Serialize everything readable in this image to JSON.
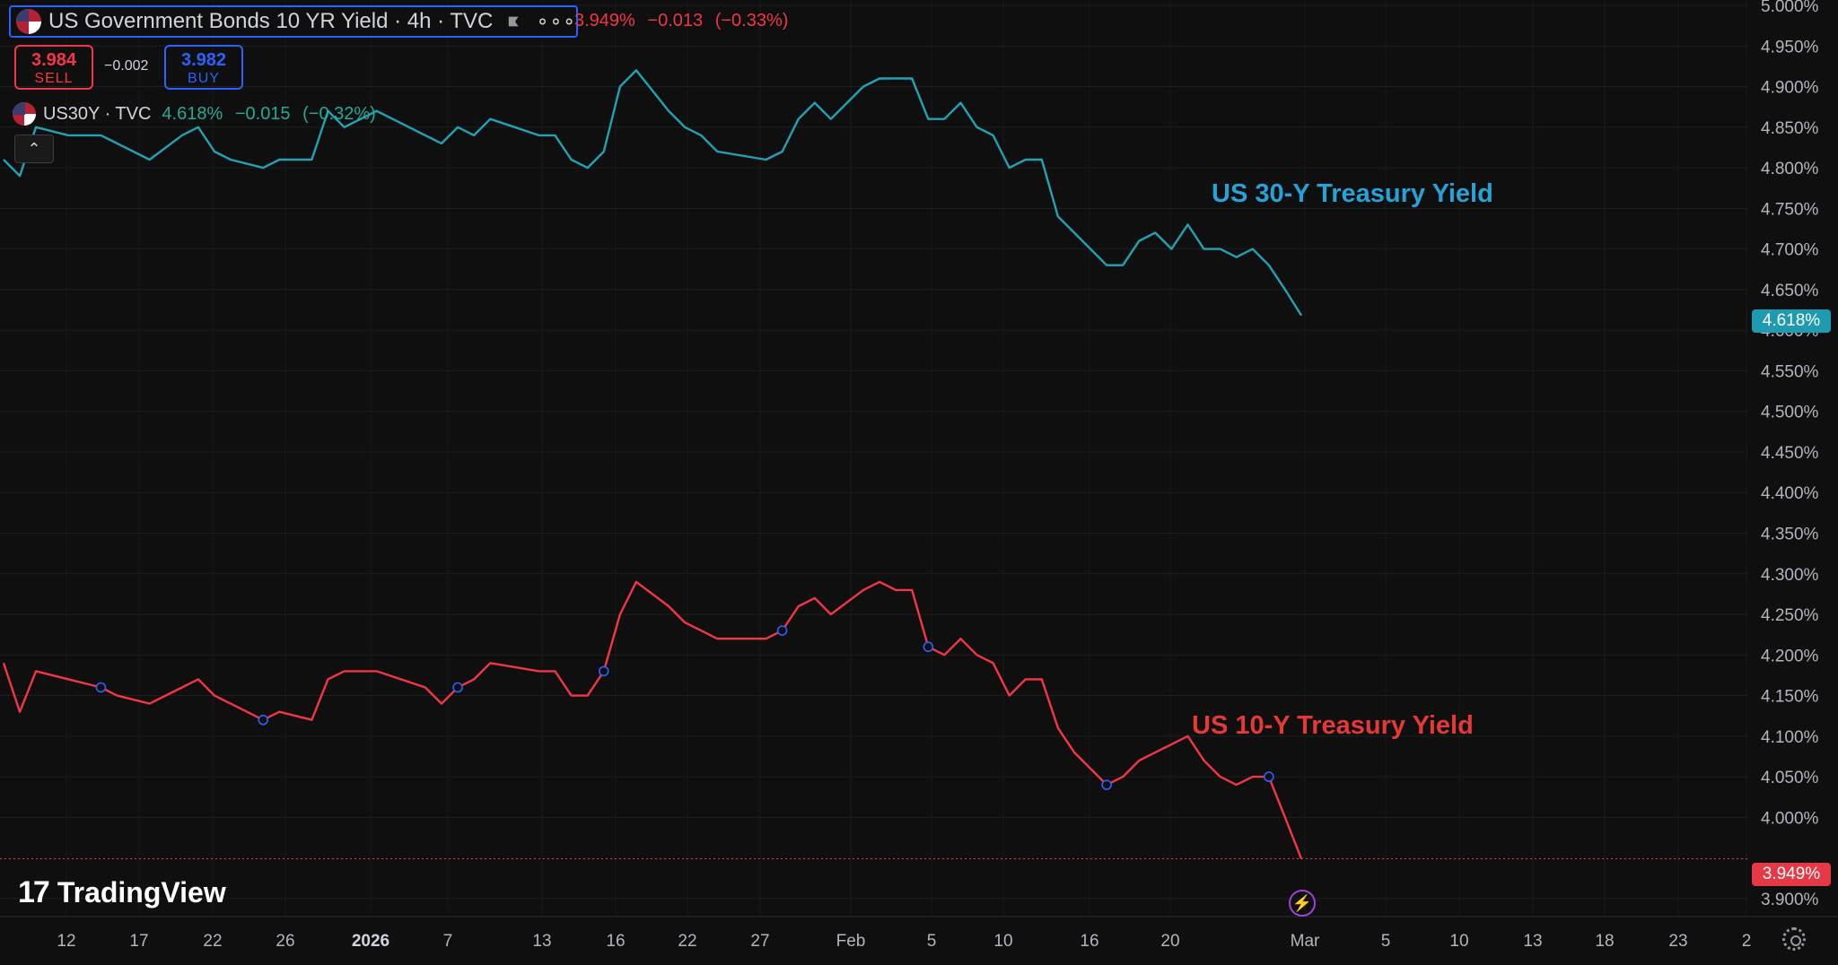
{
  "main_legend": {
    "title": "US Government Bonds 10 YR Yield · 4h · TVC",
    "more_icon": "more-dots-icon",
    "last": "3.949%",
    "change": "−0.013",
    "change_pct": "(−0.33%)"
  },
  "trade": {
    "sell_price": "3.984",
    "sell_label": "SELL",
    "spread": "−0.002",
    "buy_price": "3.982",
    "buy_label": "BUY"
  },
  "overlay_legend": {
    "symbol": "US30Y · TVC",
    "last": "4.618%",
    "change": "−0.015",
    "change_pct": "(−0.32%)"
  },
  "annotations": {
    "us30": "US 30-Y Treasury Yield",
    "us10": "US 10-Y Treasury Yield"
  },
  "branding": {
    "logo_mark": "17",
    "logo_text": "TradingView"
  },
  "badges": {
    "us30": "4.618%",
    "us10": "3.949%"
  },
  "colors": {
    "us30": "#22a2b3",
    "us10": "#f23645",
    "accent": "#2962ff",
    "event": "#a43fdb"
  },
  "chart_data": {
    "type": "line",
    "y_unit": "%",
    "ylim": [
      3.88,
      5.0
    ],
    "y_ticks": [
      "5.000%",
      "4.950%",
      "4.900%",
      "4.850%",
      "4.800%",
      "4.750%",
      "4.700%",
      "4.650%",
      "4.600%",
      "4.550%",
      "4.500%",
      "4.450%",
      "4.400%",
      "4.350%",
      "4.300%",
      "4.250%",
      "4.200%",
      "4.150%",
      "4.100%",
      "4.050%",
      "4.000%",
      "3.900%"
    ],
    "x_ticks": [
      "12",
      "17",
      "22",
      "26",
      "2026",
      "7",
      "13",
      "16",
      "22",
      "27",
      "Feb",
      "5",
      "10",
      "16",
      "20",
      "Mar",
      "5",
      "10",
      "13",
      "18",
      "23",
      "2"
    ],
    "grid": true,
    "series": [
      {
        "name": "US30Y",
        "color": "#22a2b3",
        "points": [
          [
            "Dec 10",
            4.81
          ],
          [
            "Dec 11",
            4.79
          ],
          [
            "Dec 12",
            4.85
          ],
          [
            "Dec 14",
            4.84
          ],
          [
            "Dec 16",
            4.84
          ],
          [
            "Dec 17",
            4.83
          ],
          [
            "Dec 19",
            4.81
          ],
          [
            "Dec 21",
            4.84
          ],
          [
            "Dec 22",
            4.85
          ],
          [
            "Dec 23",
            4.82
          ],
          [
            "Dec 24",
            4.81
          ],
          [
            "Dec 26",
            4.8
          ],
          [
            "Dec 27",
            4.81
          ],
          [
            "Dec 29",
            4.81
          ],
          [
            "Dec 30",
            4.87
          ],
          [
            "Dec 31",
            4.85
          ],
          [
            "Jan 2",
            4.87
          ],
          [
            "Jan 5",
            4.84
          ],
          [
            "Jan 6",
            4.83
          ],
          [
            "Jan 7",
            4.85
          ],
          [
            "Jan 8",
            4.84
          ],
          [
            "Jan 9",
            4.86
          ],
          [
            "Jan 12",
            4.84
          ],
          [
            "Jan 13",
            4.84
          ],
          [
            "Jan 14",
            4.81
          ],
          [
            "Jan 15",
            4.8
          ],
          [
            "Jan 16",
            4.82
          ],
          [
            "Jan 17",
            4.9
          ],
          [
            "Jan 18",
            4.92
          ],
          [
            "Jan 20",
            4.87
          ],
          [
            "Jan 21",
            4.85
          ],
          [
            "Jan 22",
            4.84
          ],
          [
            "Jan 23",
            4.82
          ],
          [
            "Jan 26",
            4.81
          ],
          [
            "Jan 27",
            4.82
          ],
          [
            "Jan 28",
            4.86
          ],
          [
            "Jan 29",
            4.88
          ],
          [
            "Jan 30",
            4.86
          ],
          [
            "Feb 1",
            4.9
          ],
          [
            "Feb 2",
            4.91
          ],
          [
            "Feb 3",
            4.91
          ],
          [
            "Feb 4",
            4.91
          ],
          [
            "Feb 5",
            4.86
          ],
          [
            "Feb 6",
            4.86
          ],
          [
            "Feb 7",
            4.88
          ],
          [
            "Feb 8",
            4.85
          ],
          [
            "Feb 9",
            4.84
          ],
          [
            "Feb 10",
            4.8
          ],
          [
            "Feb 11",
            4.81
          ],
          [
            "Feb 12",
            4.81
          ],
          [
            "Feb 13",
            4.74
          ],
          [
            "Feb 14",
            4.72
          ],
          [
            "Feb 16",
            4.68
          ],
          [
            "Feb 17",
            4.68
          ],
          [
            "Feb 18",
            4.71
          ],
          [
            "Feb 19",
            4.72
          ],
          [
            "Feb 20",
            4.7
          ],
          [
            "Feb 21",
            4.73
          ],
          [
            "Feb 22",
            4.7
          ],
          [
            "Feb 23",
            4.7
          ],
          [
            "Feb 24",
            4.69
          ],
          [
            "Feb 25",
            4.7
          ],
          [
            "Feb 26",
            4.68
          ],
          [
            "Feb 27",
            4.65
          ],
          [
            "Feb 28",
            4.618
          ]
        ]
      },
      {
        "name": "US10Y",
        "color": "#f23645",
        "points": [
          [
            "Dec 10",
            4.19
          ],
          [
            "Dec 11",
            4.13
          ],
          [
            "Dec 12",
            4.18
          ],
          [
            "Dec 14",
            4.17
          ],
          [
            "Dec 16",
            4.16
          ],
          [
            "Dec 17",
            4.15
          ],
          [
            "Dec 19",
            4.14
          ],
          [
            "Dec 21",
            4.16
          ],
          [
            "Dec 22",
            4.17
          ],
          [
            "Dec 23",
            4.15
          ],
          [
            "Dec 24",
            4.14
          ],
          [
            "Dec 26",
            4.12
          ],
          [
            "Dec 27",
            4.13
          ],
          [
            "Dec 29",
            4.12
          ],
          [
            "Dec 30",
            4.17
          ],
          [
            "Dec 31",
            4.18
          ],
          [
            "Jan 2",
            4.18
          ],
          [
            "Jan 5",
            4.16
          ],
          [
            "Jan 6",
            4.14
          ],
          [
            "Jan 7",
            4.16
          ],
          [
            "Jan 8",
            4.17
          ],
          [
            "Jan 9",
            4.19
          ],
          [
            "Jan 12",
            4.18
          ],
          [
            "Jan 13",
            4.18
          ],
          [
            "Jan 14",
            4.15
          ],
          [
            "Jan 15",
            4.15
          ],
          [
            "Jan 16",
            4.18
          ],
          [
            "Jan 17",
            4.25
          ],
          [
            "Jan 18",
            4.29
          ],
          [
            "Jan 20",
            4.26
          ],
          [
            "Jan 21",
            4.24
          ],
          [
            "Jan 22",
            4.23
          ],
          [
            "Jan 23",
            4.22
          ],
          [
            "Jan 26",
            4.22
          ],
          [
            "Jan 27",
            4.23
          ],
          [
            "Jan 28",
            4.26
          ],
          [
            "Jan 29",
            4.27
          ],
          [
            "Jan 30",
            4.25
          ],
          [
            "Feb 1",
            4.28
          ],
          [
            "Feb 2",
            4.29
          ],
          [
            "Feb 3",
            4.28
          ],
          [
            "Feb 4",
            4.28
          ],
          [
            "Feb 5",
            4.21
          ],
          [
            "Feb 6",
            4.2
          ],
          [
            "Feb 7",
            4.22
          ],
          [
            "Feb 8",
            4.2
          ],
          [
            "Feb 9",
            4.19
          ],
          [
            "Feb 10",
            4.15
          ],
          [
            "Feb 11",
            4.17
          ],
          [
            "Feb 12",
            4.17
          ],
          [
            "Feb 13",
            4.11
          ],
          [
            "Feb 14",
            4.08
          ],
          [
            "Feb 16",
            4.04
          ],
          [
            "Feb 17",
            4.05
          ],
          [
            "Feb 18",
            4.07
          ],
          [
            "Feb 19",
            4.08
          ],
          [
            "Feb 20",
            4.09
          ],
          [
            "Feb 21",
            4.1
          ],
          [
            "Feb 22",
            4.07
          ],
          [
            "Feb 23",
            4.05
          ],
          [
            "Feb 24",
            4.04
          ],
          [
            "Feb 25",
            4.05
          ],
          [
            "Feb 26",
            4.05
          ],
          [
            "Feb 27",
            4.0
          ],
          [
            "Feb 28",
            3.949
          ]
        ]
      }
    ],
    "markers_on": "US10Y",
    "markers": [
      "Dec 16",
      "Dec 26",
      "Jan 7",
      "Jan 16",
      "Jan 27",
      "Feb 5",
      "Feb 16",
      "Feb 26"
    ]
  }
}
